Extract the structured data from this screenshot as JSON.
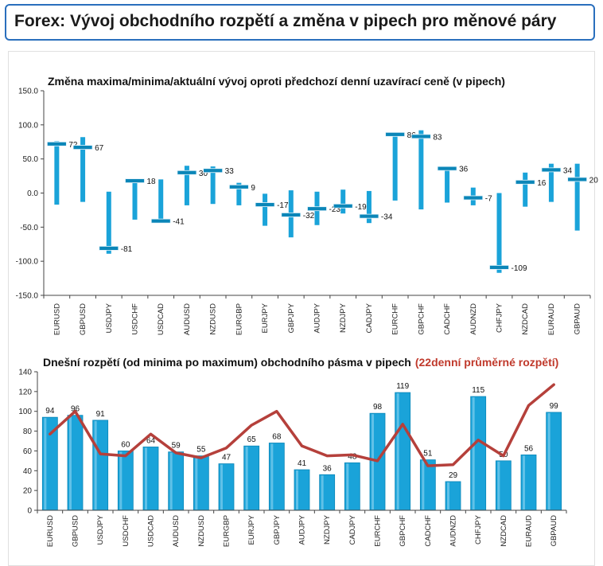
{
  "header": {
    "title": "Forex: Vývoj obchodního rozpětí a změna v pipech pro měnové páry"
  },
  "colors": {
    "bar": "#1aa3d9",
    "bar_dark": "#0b86b8",
    "avg_line": "#b5403b",
    "header_border": "#2a6fbd"
  },
  "chart_data": [
    {
      "type": "range",
      "title": "Změna maxima/minima/aktuální vývoj oproti předchozí denní uzavírací ceně (v pipech)",
      "ylim": [
        -150,
        150
      ],
      "yticks": [
        "150.0",
        "100.0",
        "50.0",
        "0.0",
        "-50.0",
        "-100.0",
        "-150.0"
      ],
      "categories": [
        "EURUSD",
        "GBPUSD",
        "USDJPY",
        "USDCHF",
        "USDCAD",
        "AUDUSD",
        "NZDUSD",
        "EURGBP",
        "EURJPY",
        "GBPJPY",
        "AUDJPY",
        "NZDJPY",
        "CADJPY",
        "EURCHF",
        "GBPCHF",
        "CADCHF",
        "AUDNZD",
        "CHFJPY",
        "NZDCAD",
        "EURAUD",
        "GBPAUD"
      ],
      "high": [
        76,
        82,
        2,
        18,
        20,
        40,
        39,
        15,
        -1,
        4,
        2,
        5,
        3,
        88,
        92,
        38,
        8,
        0,
        30,
        43,
        43
      ],
      "low": [
        -17,
        -13,
        -89,
        -39,
        -41,
        -18,
        -16,
        -18,
        -48,
        -65,
        -47,
        -30,
        -44,
        -11,
        -24,
        -14,
        -18,
        -117,
        -20,
        -13,
        -55
      ],
      "current": [
        72,
        67,
        -81,
        18,
        -41,
        30,
        33,
        9,
        -17,
        -32,
        -23,
        -19,
        -34,
        86,
        83,
        36,
        -7,
        -109,
        16,
        34,
        20
      ],
      "labels": [
        "72",
        "67",
        "-81",
        "18",
        "-41",
        "30",
        "33",
        "9",
        "-17",
        "-32",
        "-23",
        "-19",
        "-34",
        "86",
        "83",
        "36",
        "-7",
        "-109",
        "16",
        "34",
        "20"
      ]
    },
    {
      "type": "bar",
      "title": "Dnešní rozpětí (od minima po maximum) obchodního pásma v pipech",
      "title_highlight": "(22denní průměrné rozpětí)",
      "ylim": [
        0,
        140
      ],
      "yticks": [
        "140",
        "120",
        "100",
        "80",
        "60",
        "40",
        "20",
        "0"
      ],
      "categories": [
        "EURUSD",
        "GBPUSD",
        "USDJPY",
        "USDCHF",
        "USDCAD",
        "AUDUSD",
        "NZDUSD",
        "EURGBP",
        "EURJPY",
        "GBPJPY",
        "AUDJPY",
        "NZDJPY",
        "CADJPY",
        "EURCHF",
        "GBPCHF",
        "CADCHF",
        "AUDNZD",
        "CHFJPY",
        "NZDCAD",
        "EURAUD",
        "GBPAUD"
      ],
      "series": [
        {
          "values": [
            94,
            96,
            91,
            60,
            64,
            59,
            55,
            47,
            65,
            68,
            41,
            36,
            48,
            98,
            119,
            51,
            29,
            115,
            50,
            56,
            99
          ],
          "labels": [
            "94",
            "96",
            "91",
            "60",
            "64",
            "59",
            "55",
            "47",
            "65",
            "68",
            "41",
            "36",
            "48",
            "98",
            "119",
            "51",
            "29",
            "115",
            "50",
            "56",
            "99"
          ]
        },
        {
          "values": [
            77,
            100,
            57,
            55,
            77,
            58,
            53,
            63,
            86,
            100,
            65,
            55,
            56,
            50,
            87,
            45,
            46,
            71,
            55,
            106,
            127
          ]
        }
      ]
    }
  ]
}
